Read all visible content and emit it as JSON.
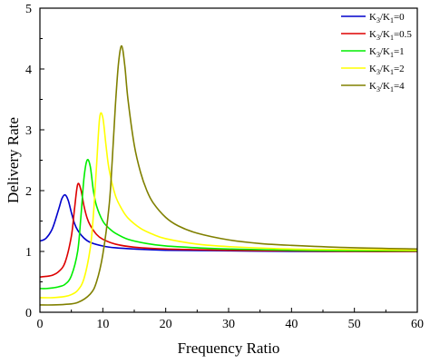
{
  "chart_data": {
    "type": "line",
    "title": "",
    "xlabel": "Frequency Ratio",
    "ylabel": "Delivery Rate",
    "xlim": [
      0,
      60
    ],
    "ylim": [
      0,
      5
    ],
    "xticks": [
      0,
      10,
      20,
      30,
      40,
      50,
      60
    ],
    "yticks": [
      0,
      1,
      2,
      3,
      4,
      5
    ],
    "grid": false,
    "legend_position": "top-right",
    "series": [
      {
        "name": "K3/K1=0",
        "legend_main": "K",
        "legend_sub1": "3",
        "legend_mid": "/K",
        "legend_sub2": "1",
        "legend_tail": "=0",
        "color": "#0000cc",
        "x": [
          0,
          1,
          2,
          3,
          3.5,
          4,
          4.5,
          5,
          5.5,
          6,
          7,
          8,
          10,
          12,
          15,
          20,
          30,
          40,
          50,
          60
        ],
        "y": [
          1.17,
          1.22,
          1.38,
          1.7,
          1.87,
          1.93,
          1.84,
          1.64,
          1.46,
          1.35,
          1.22,
          1.15,
          1.09,
          1.06,
          1.04,
          1.02,
          1.01,
          1.0,
          1.0,
          1.0
        ]
      },
      {
        "name": "K3/K1=0.5",
        "legend_main": "K",
        "legend_sub1": "3",
        "legend_mid": "/K",
        "legend_sub2": "1",
        "legend_tail": "=0.5",
        "color": "#dd0000",
        "x": [
          0,
          1,
          2,
          3,
          4,
          5,
          5.5,
          6,
          6.5,
          7,
          7.5,
          8,
          9,
          10,
          12,
          15,
          20,
          30,
          40,
          50,
          60
        ],
        "y": [
          0.58,
          0.59,
          0.61,
          0.67,
          0.82,
          1.25,
          1.7,
          2.1,
          2.02,
          1.75,
          1.55,
          1.43,
          1.28,
          1.2,
          1.12,
          1.07,
          1.04,
          1.02,
          1.01,
          1.0,
          1.0
        ]
      },
      {
        "name": "K3/K1=1",
        "legend_main": "K",
        "legend_sub1": "3",
        "legend_mid": "/K",
        "legend_sub2": "1",
        "legend_tail": "=1",
        "color": "#00ee00",
        "x": [
          0,
          1,
          2,
          3,
          4,
          5,
          6,
          6.5,
          7,
          7.5,
          8,
          8.5,
          9,
          10,
          11,
          12,
          14,
          17,
          20,
          25,
          30,
          40,
          50,
          60
        ],
        "y": [
          0.39,
          0.39,
          0.4,
          0.42,
          0.46,
          0.6,
          1.0,
          1.55,
          2.2,
          2.5,
          2.4,
          2.0,
          1.75,
          1.5,
          1.38,
          1.3,
          1.2,
          1.13,
          1.09,
          1.06,
          1.04,
          1.02,
          1.01,
          1.01
        ]
      },
      {
        "name": "K3/K1=2",
        "legend_main": "K",
        "legend_sub1": "3",
        "legend_mid": "/K",
        "legend_sub2": "1",
        "legend_tail": "=2",
        "color": "#ffff00",
        "x": [
          0,
          2,
          4,
          5,
          6,
          7,
          8,
          8.5,
          9,
          9.5,
          10,
          10.5,
          11,
          12,
          13,
          14,
          16,
          18,
          20,
          25,
          30,
          40,
          50,
          60
        ],
        "y": [
          0.24,
          0.24,
          0.26,
          0.29,
          0.36,
          0.55,
          1.05,
          1.6,
          2.4,
          3.2,
          3.2,
          2.75,
          2.35,
          1.92,
          1.7,
          1.55,
          1.38,
          1.28,
          1.21,
          1.12,
          1.08,
          1.04,
          1.03,
          1.02
        ]
      },
      {
        "name": "K3/K1=4",
        "legend_main": "K",
        "legend_sub1": "3",
        "legend_mid": "/K",
        "legend_sub2": "1",
        "legend_tail": "=4",
        "color": "#808000",
        "x": [
          0,
          2,
          4,
          6,
          8,
          9,
          10,
          11,
          11.5,
          12,
          12.5,
          13,
          13.5,
          14,
          15,
          16,
          17,
          18,
          20,
          22,
          25,
          30,
          35,
          40,
          50,
          60
        ],
        "y": [
          0.12,
          0.12,
          0.13,
          0.16,
          0.3,
          0.5,
          0.95,
          1.75,
          2.5,
          3.4,
          4.1,
          4.38,
          4.05,
          3.5,
          2.75,
          2.3,
          2.0,
          1.8,
          1.56,
          1.42,
          1.3,
          1.19,
          1.13,
          1.1,
          1.06,
          1.04
        ]
      }
    ]
  }
}
